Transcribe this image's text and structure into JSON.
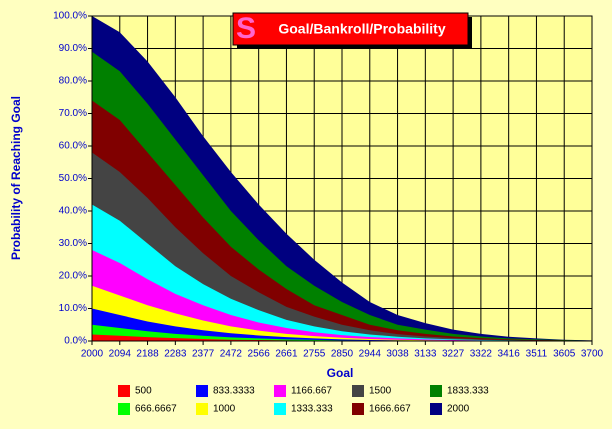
{
  "chart_data": {
    "type": "area",
    "title": "Goal/Bankroll/Probability",
    "x_label": "Goal",
    "y_label": "Probability of Reaching Goal",
    "categories": [
      "2000",
      "2094",
      "2188",
      "2283",
      "2377",
      "2472",
      "2566",
      "2661",
      "2755",
      "2850",
      "2944",
      "3038",
      "3133",
      "3227",
      "3322",
      "3416",
      "3511",
      "3605",
      "3700"
    ],
    "ylim": [
      0,
      100
    ],
    "yticks": [
      {
        "value": 0,
        "label": "0.0%"
      },
      {
        "value": 10,
        "label": "10.0%"
      },
      {
        "value": 20,
        "label": "20.0%"
      },
      {
        "value": 30,
        "label": "30.0%"
      },
      {
        "value": 40,
        "label": "40.0%"
      },
      {
        "value": 50,
        "label": "50.0%"
      },
      {
        "value": 60,
        "label": "60.0%"
      },
      {
        "value": 70,
        "label": "70.0%"
      },
      {
        "value": 80,
        "label": "80.0%"
      },
      {
        "value": 90,
        "label": "90.0%"
      },
      {
        "value": 100,
        "label": "100.0%"
      }
    ],
    "grid": true,
    "legend": "bottom",
    "series": [
      {
        "name": "500",
        "color": "#ff0000",
        "values": [
          2,
          1.6,
          1.2,
          0.9,
          0.6,
          0.4,
          0.3,
          0.2,
          0.1,
          0.07,
          0.05,
          0,
          0,
          0,
          0,
          0,
          0,
          0,
          0
        ]
      },
      {
        "name": "666.6667",
        "color": "#00ff00",
        "values": [
          5,
          4,
          3,
          2.2,
          1.6,
          1.1,
          0.8,
          0.5,
          0.35,
          0.2,
          0.15,
          0.1,
          0.05,
          0,
          0,
          0,
          0,
          0,
          0
        ]
      },
      {
        "name": "833.3333",
        "color": "#0000ff",
        "values": [
          10,
          8,
          6,
          4.5,
          3.3,
          2.4,
          1.7,
          1.2,
          0.8,
          0.5,
          0.3,
          0.2,
          0.1,
          0.05,
          0,
          0,
          0,
          0,
          0
        ]
      },
      {
        "name": "1000",
        "color": "#ffff00",
        "values": [
          17,
          14,
          11,
          8.5,
          6.3,
          4.5,
          3.2,
          2.2,
          1.5,
          1,
          0.6,
          0.4,
          0.25,
          0.15,
          0.1,
          0.05,
          0,
          0,
          0
        ]
      },
      {
        "name": "1166.667",
        "color": "#ff00ff",
        "values": [
          28,
          24,
          19,
          14.5,
          11,
          8,
          5.7,
          4,
          2.7,
          1.8,
          1.2,
          0.8,
          0.5,
          0.3,
          0.2,
          0.1,
          0.05,
          0,
          0
        ]
      },
      {
        "name": "1333.333",
        "color": "#00ffff",
        "values": [
          42,
          37,
          30,
          23,
          17.5,
          13,
          9.5,
          6.5,
          4.5,
          3,
          2,
          1.3,
          0.8,
          0.5,
          0.3,
          0.2,
          0.1,
          0.05,
          0
        ]
      },
      {
        "name": "1500",
        "color": "#444444",
        "values": [
          58,
          52,
          44,
          35,
          27,
          20,
          15,
          10.5,
          7.5,
          5,
          3.3,
          2.1,
          1.4,
          0.9,
          0.5,
          0.3,
          0.2,
          0.1,
          0.05
        ]
      },
      {
        "name": "1666.667",
        "color": "#800000",
        "values": [
          74,
          68,
          58,
          48,
          38,
          29,
          22,
          16,
          11,
          8,
          5,
          3.3,
          2.2,
          1.4,
          0.9,
          0.5,
          0.3,
          0.2,
          0.1
        ]
      },
      {
        "name": "1833.333",
        "color": "#008000",
        "values": [
          89,
          83,
          73,
          62,
          51,
          40,
          31,
          23,
          17,
          12,
          8,
          5,
          3.5,
          2.2,
          1.4,
          0.8,
          0.5,
          0.3,
          0.1
        ]
      },
      {
        "name": "2000",
        "color": "#000080",
        "values": [
          100,
          95,
          86,
          75,
          63,
          52,
          42,
          33,
          25,
          18,
          12,
          8,
          5.5,
          3.5,
          2.2,
          1.3,
          0.8,
          0.4,
          0.2
        ]
      }
    ]
  }
}
